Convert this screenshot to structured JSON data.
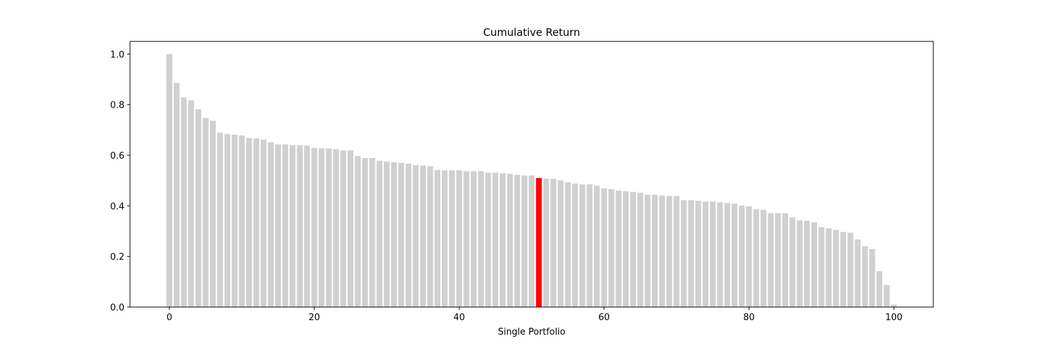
{
  "chart_data": {
    "type": "bar",
    "title": "Cumulative Return",
    "x_label": "Single Portfolio",
    "x": [
      0,
      1,
      2,
      3,
      4,
      5,
      6,
      7,
      8,
      9,
      10,
      11,
      12,
      13,
      14,
      15,
      16,
      17,
      18,
      19,
      20,
      21,
      22,
      23,
      24,
      25,
      26,
      27,
      28,
      29,
      30,
      31,
      32,
      33,
      34,
      35,
      36,
      37,
      38,
      39,
      40,
      41,
      42,
      43,
      44,
      45,
      46,
      47,
      48,
      49,
      50,
      51,
      52,
      53,
      54,
      55,
      56,
      57,
      58,
      59,
      60,
      61,
      62,
      63,
      64,
      65,
      66,
      67,
      68,
      69,
      70,
      71,
      72,
      73,
      74,
      75,
      76,
      77,
      78,
      79,
      80,
      81,
      82,
      83,
      84,
      85,
      86,
      87,
      88,
      89,
      90,
      91,
      92,
      93,
      94,
      95,
      96,
      97,
      98,
      99,
      100
    ],
    "values": [
      1.0,
      0.886,
      0.828,
      0.817,
      0.782,
      0.747,
      0.736,
      0.689,
      0.684,
      0.681,
      0.678,
      0.668,
      0.667,
      0.662,
      0.651,
      0.643,
      0.643,
      0.64,
      0.64,
      0.638,
      0.629,
      0.627,
      0.627,
      0.624,
      0.619,
      0.619,
      0.597,
      0.589,
      0.589,
      0.578,
      0.575,
      0.572,
      0.57,
      0.567,
      0.561,
      0.559,
      0.556,
      0.542,
      0.54,
      0.54,
      0.54,
      0.537,
      0.537,
      0.537,
      0.531,
      0.531,
      0.529,
      0.526,
      0.523,
      0.52,
      0.52,
      0.51,
      0.507,
      0.507,
      0.501,
      0.493,
      0.488,
      0.485,
      0.485,
      0.48,
      0.469,
      0.466,
      0.46,
      0.458,
      0.455,
      0.452,
      0.444,
      0.444,
      0.441,
      0.439,
      0.439,
      0.422,
      0.422,
      0.42,
      0.417,
      0.417,
      0.414,
      0.411,
      0.409,
      0.401,
      0.398,
      0.387,
      0.384,
      0.371,
      0.371,
      0.371,
      0.354,
      0.343,
      0.341,
      0.335,
      0.316,
      0.311,
      0.305,
      0.297,
      0.294,
      0.267,
      0.24,
      0.229,
      0.142,
      0.087,
      0.01
    ],
    "color": "#d0d0d0",
    "highlight": {
      "index": 51,
      "color": "#ff0000"
    },
    "bar_width": 0.8,
    "xlim": [
      -5.44,
      105.44
    ],
    "xticks": [
      0,
      20,
      40,
      60,
      80,
      100
    ],
    "ylim": [
      0,
      1.05
    ],
    "yticks": [
      {
        "value": 0,
        "label": "0.0"
      },
      0.2,
      0.4,
      0.6,
      0.8,
      {
        "value": 1,
        "label": "1.0"
      }
    ],
    "grid": false
  }
}
